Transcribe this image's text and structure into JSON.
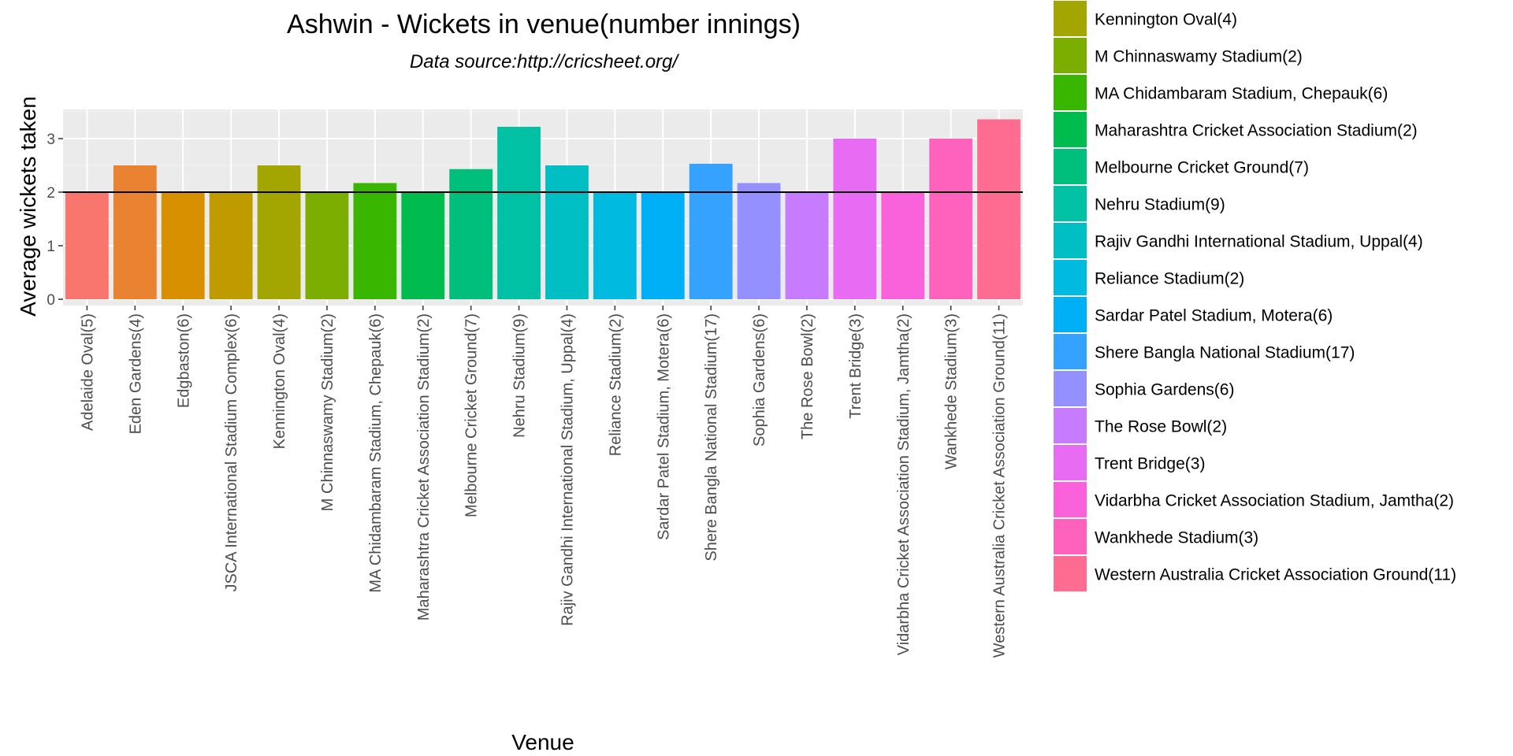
{
  "chart_data": {
    "type": "bar",
    "title": "Ashwin - Wickets in venue(number innings)",
    "subtitle": "Data source:http://cricsheet.org/",
    "xlabel": "Venue",
    "ylabel": "Average wickets taken",
    "ylim": [
      0,
      3.5
    ],
    "yticks": [
      0,
      1,
      2,
      3
    ],
    "grid": true,
    "legend_position": "right",
    "reference_line": 2,
    "categories": [
      "Adelaide Oval(5)",
      "Eden Gardens(4)",
      "Edgbaston(6)",
      "JSCA International Stadium Complex(6)",
      "Kennington Oval(4)",
      "M Chinnaswamy Stadium(2)",
      "MA Chidambaram Stadium, Chepauk(6)",
      "Maharashtra Cricket Association Stadium(2)",
      "Melbourne Cricket Ground(7)",
      "Nehru Stadium(9)",
      "Rajiv Gandhi International Stadium, Uppal(4)",
      "Reliance Stadium(2)",
      "Sardar Patel Stadium, Motera(6)",
      "Shere Bangla National Stadium(17)",
      "Sophia Gardens(6)",
      "The Rose Bowl(2)",
      "Trent Bridge(3)",
      "Vidarbha Cricket Association Stadium, Jamtha(2)",
      "Wankhede Stadium(3)",
      "Western Australia Cricket Association Ground(11)"
    ],
    "values": [
      2.0,
      2.5,
      2.0,
      2.0,
      2.5,
      2.0,
      2.17,
      2.0,
      2.43,
      3.22,
      2.5,
      2.0,
      2.0,
      2.53,
      2.17,
      2.0,
      3.0,
      2.0,
      3.0,
      3.36
    ],
    "colors": [
      "#F8766D",
      "#EA8331",
      "#D89000",
      "#C09B00",
      "#A3A500",
      "#7CAE00",
      "#39B600",
      "#00BB4E",
      "#00BF7D",
      "#00C1A3",
      "#00BFC4",
      "#00BAE0",
      "#00B0F6",
      "#35A2FF",
      "#9590FF",
      "#C77CFF",
      "#E76BF3",
      "#FA62DB",
      "#FF62BC",
      "#FF6C91"
    ],
    "legend": {
      "entries": [
        "Kennington Oval(4)",
        "M Chinnaswamy Stadium(2)",
        "MA Chidambaram Stadium, Chepauk(6)",
        "Maharashtra Cricket Association Stadium(2)",
        "Melbourne Cricket Ground(7)",
        "Nehru Stadium(9)",
        "Rajiv Gandhi International Stadium, Uppal(4)",
        "Reliance Stadium(2)",
        "Sardar Patel Stadium, Motera(6)",
        "Shere Bangla National Stadium(17)",
        "Sophia Gardens(6)",
        "The Rose Bowl(2)",
        "Trent Bridge(3)",
        "Vidarbha Cricket Association Stadium, Jamtha(2)",
        "Wankhede Stadium(3)",
        "Western Australia Cricket Association Ground(11)"
      ],
      "colors": [
        "#A3A500",
        "#7CAE00",
        "#39B600",
        "#00BB4E",
        "#00BF7D",
        "#00C1A3",
        "#00BFC4",
        "#00BAE0",
        "#00B0F6",
        "#35A2FF",
        "#9590FF",
        "#C77CFF",
        "#E76BF3",
        "#FA62DB",
        "#FF62BC",
        "#FF6C91"
      ]
    }
  }
}
